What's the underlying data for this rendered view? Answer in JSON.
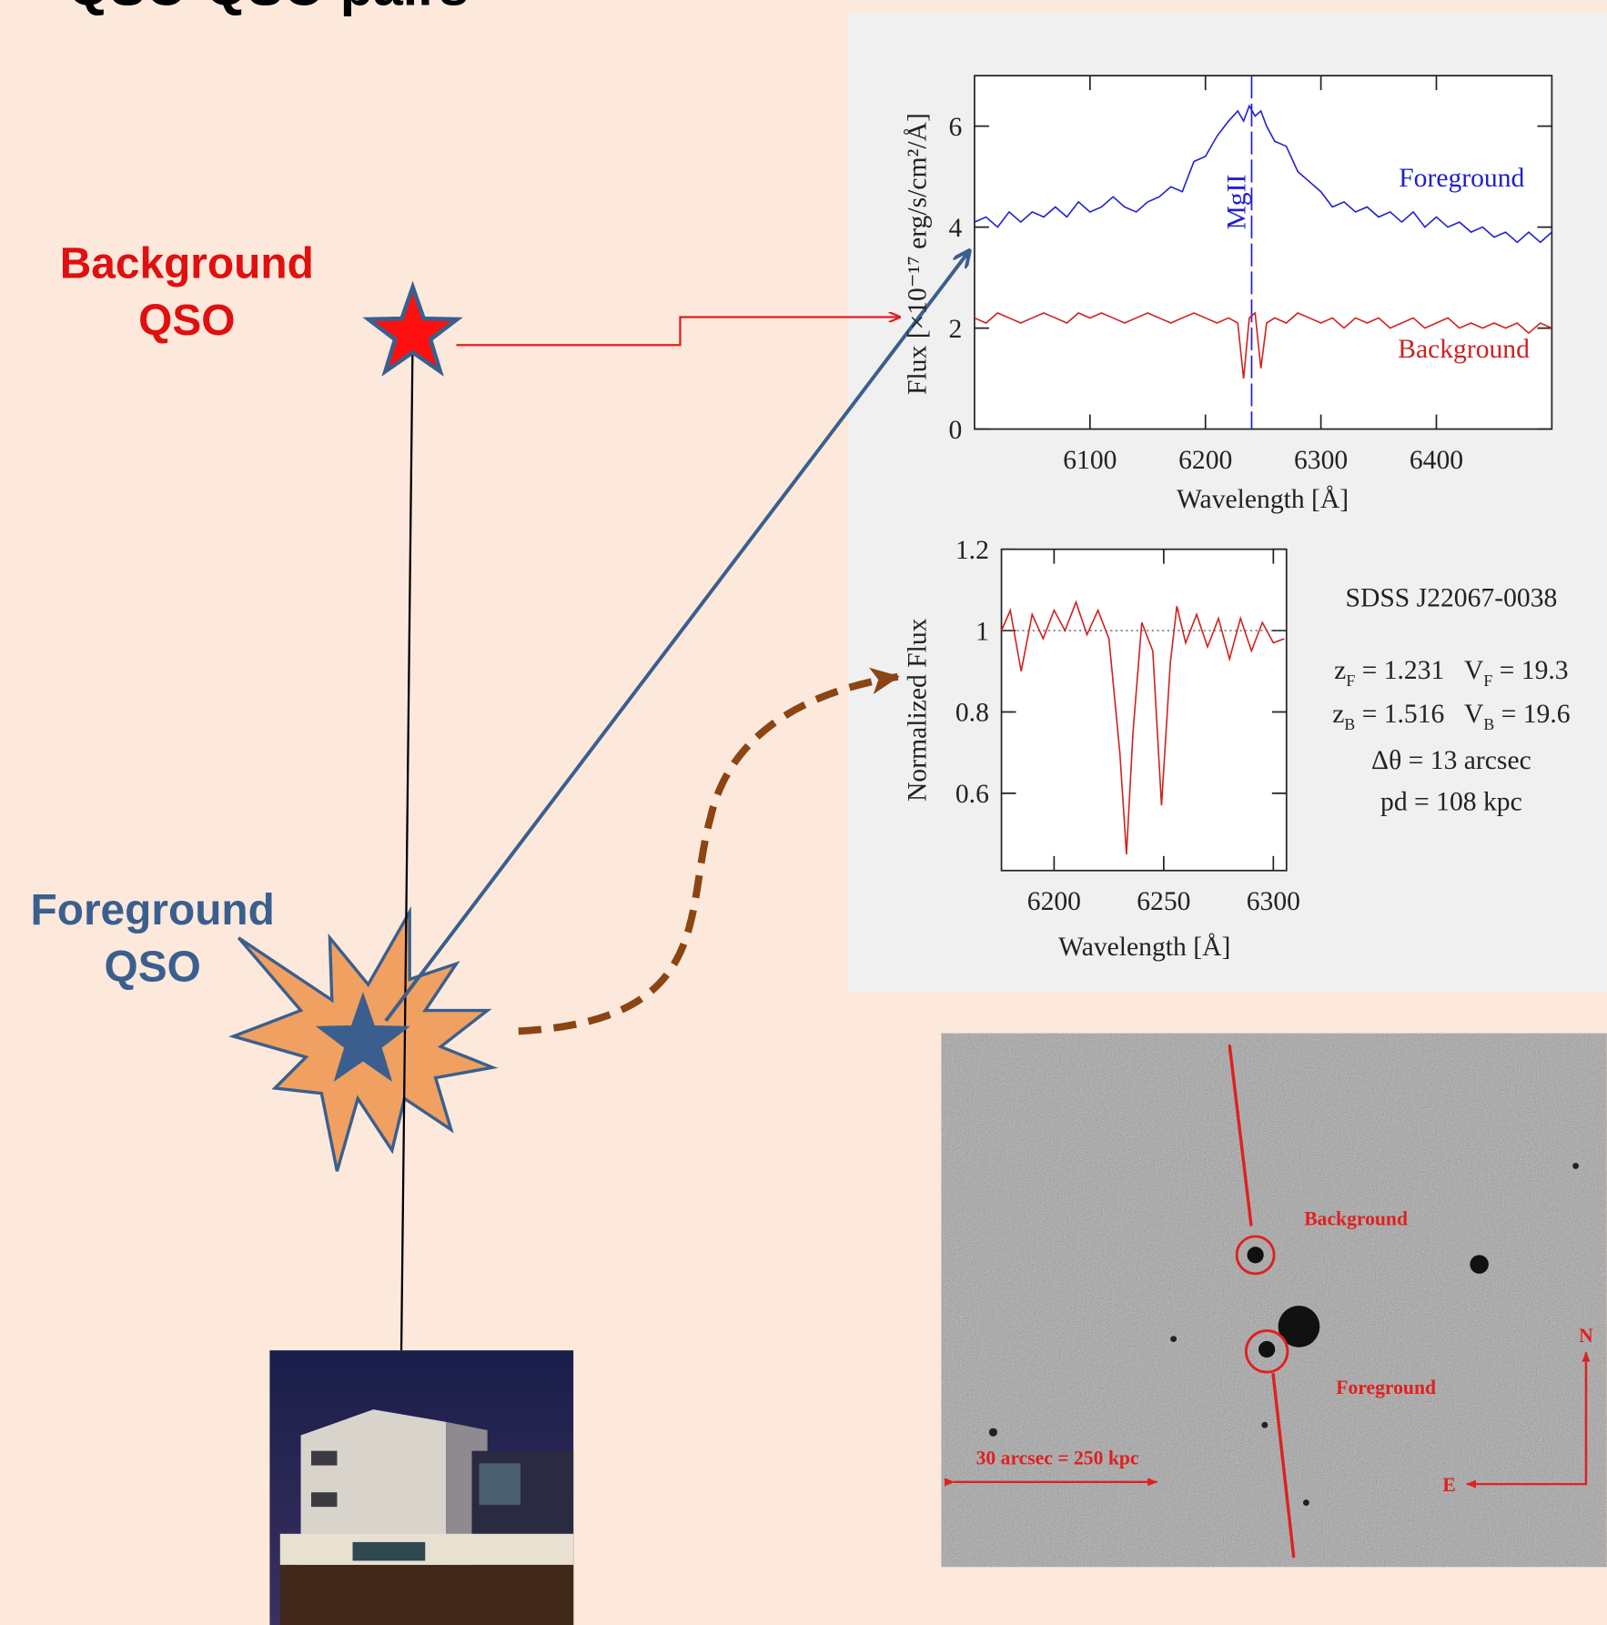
{
  "title": "QSO-QSO pairs",
  "background_qso": [
    "Background",
    "QSO"
  ],
  "foreground_qso": [
    "Foreground",
    "QSO"
  ],
  "chart_data": [
    {
      "type": "line",
      "x_label": "Wavelength [Å]",
      "y_label": "Flux [×10⁻¹⁷ erg/s/cm²/Å]",
      "xlim": [
        6000,
        6500
      ],
      "ylim": [
        0,
        7
      ],
      "xticks": [
        6100,
        6200,
        6300,
        6400
      ],
      "yticks": [
        0,
        2,
        4,
        6
      ],
      "annotation": {
        "label": "MgII",
        "x": 6240
      },
      "x": [
        6000,
        6010,
        6020,
        6030,
        6040,
        6050,
        6060,
        6070,
        6080,
        6090,
        6100,
        6110,
        6120,
        6130,
        6140,
        6150,
        6160,
        6170,
        6180,
        6190,
        6200,
        6210,
        6220,
        6228,
        6233,
        6238,
        6243,
        6248,
        6253,
        6260,
        6270,
        6280,
        6290,
        6300,
        6310,
        6320,
        6330,
        6340,
        6350,
        6360,
        6370,
        6380,
        6390,
        6400,
        6410,
        6420,
        6430,
        6440,
        6450,
        6460,
        6470,
        6480,
        6490,
        6500
      ],
      "series": [
        {
          "name": "Foreground",
          "color": "#2020d0",
          "values": [
            4.1,
            4.2,
            4.0,
            4.3,
            4.1,
            4.3,
            4.2,
            4.4,
            4.2,
            4.5,
            4.3,
            4.4,
            4.6,
            4.4,
            4.3,
            4.5,
            4.6,
            4.8,
            4.7,
            5.3,
            5.4,
            5.8,
            6.1,
            6.3,
            6.1,
            6.4,
            6.2,
            6.3,
            6.0,
            5.7,
            5.6,
            5.1,
            4.9,
            4.7,
            4.4,
            4.5,
            4.3,
            4.4,
            4.2,
            4.3,
            4.1,
            4.3,
            4.0,
            4.2,
            4.0,
            4.1,
            3.9,
            4.0,
            3.8,
            3.9,
            3.7,
            3.9,
            3.7,
            3.9
          ]
        },
        {
          "name": "Background",
          "color": "#d02020",
          "values": [
            2.2,
            2.1,
            2.3,
            2.2,
            2.1,
            2.2,
            2.3,
            2.2,
            2.1,
            2.3,
            2.2,
            2.3,
            2.2,
            2.1,
            2.2,
            2.3,
            2.2,
            2.1,
            2.2,
            2.3,
            2.2,
            2.1,
            2.2,
            2.1,
            1.0,
            2.2,
            2.3,
            1.2,
            2.1,
            2.2,
            2.1,
            2.3,
            2.2,
            2.1,
            2.2,
            2.0,
            2.2,
            2.1,
            2.2,
            2.0,
            2.1,
            2.2,
            2.0,
            2.1,
            2.2,
            2.0,
            2.1,
            2.0,
            2.1,
            2.0,
            2.1,
            1.9,
            2.1,
            2.0
          ]
        }
      ]
    },
    {
      "type": "line",
      "x_label": "Wavelength [Å]",
      "y_label": "Normalized Flux",
      "xlim": [
        6176,
        6306
      ],
      "ylim": [
        0.41,
        1.2
      ],
      "xticks": [
        6200,
        6250,
        6300
      ],
      "yticks": [
        0.6,
        0.8,
        1,
        1.2
      ],
      "reference_line": 1,
      "x": [
        6176,
        6180,
        6185,
        6190,
        6195,
        6200,
        6205,
        6210,
        6215,
        6220,
        6225,
        6230,
        6233,
        6236,
        6240,
        6245,
        6249,
        6253,
        6256,
        6260,
        6265,
        6270,
        6275,
        6280,
        6285,
        6290,
        6295,
        6300,
        6305
      ],
      "series": [
        {
          "color": "#d02020",
          "values": [
            1.0,
            1.05,
            0.9,
            1.04,
            0.98,
            1.05,
            1.0,
            1.07,
            0.99,
            1.05,
            0.98,
            0.7,
            0.45,
            0.75,
            1.02,
            0.95,
            0.57,
            0.92,
            1.06,
            0.97,
            1.04,
            0.96,
            1.03,
            0.93,
            1.03,
            0.95,
            1.02,
            0.97,
            0.98
          ]
        }
      ],
      "notes": [
        [
          {
            "text": "SDSS J22067-0038"
          }
        ],
        [
          {
            "text": "z"
          },
          {
            "sub": "F"
          },
          {
            "text": " = 1.231   V"
          },
          {
            "sub": "F"
          },
          {
            "text": " = 19.3"
          }
        ],
        [
          {
            "text": "z"
          },
          {
            "sub": "B"
          },
          {
            "text": " = 1.516   V"
          },
          {
            "sub": "B"
          },
          {
            "text": " = 19.6"
          }
        ],
        [
          {
            "text": "Δθ = 13 arcsec"
          }
        ],
        [
          {
            "text": "pd = 108 kpc"
          }
        ]
      ]
    }
  ],
  "image": {
    "background": "Background",
    "foreground": "Foreground",
    "scale_bar": "30 arcsec = 250 kpc",
    "north": "N",
    "east": "E"
  }
}
